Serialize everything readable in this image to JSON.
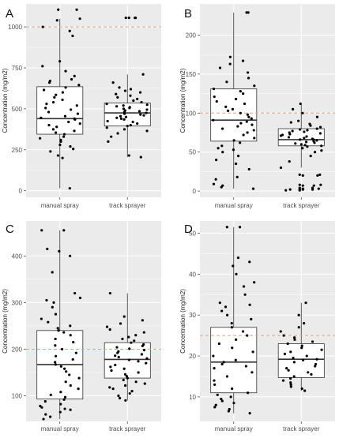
{
  "colors": {
    "panel_bg": "#ebebeb",
    "grid": "#ffffff",
    "box_fill": "#ffffff",
    "box_line": "#333333",
    "point": "#000000",
    "reference_line": "#e8a27a"
  },
  "chart_data": [
    {
      "type": "box",
      "panel_label": "A",
      "ylabel": "Concentration (mg/m2)",
      "categories": [
        "manual spray",
        "track sprayer"
      ],
      "ylim": [
        -40,
        1140
      ],
      "yticks": [
        0,
        250,
        500,
        750,
        1000
      ],
      "ytick_labels": [
        "0",
        "250",
        "500",
        "750",
        "1000"
      ],
      "reference_line": 1000,
      "grid": true,
      "boxes": [
        {
          "category": "manual spray",
          "whisker_low": 15,
          "q1": 345,
          "median": 440,
          "q3": 635,
          "whisker_high": 1050
        },
        {
          "category": "track sprayer",
          "whisker_low": 205,
          "q1": 395,
          "median": 475,
          "q3": 535,
          "whisker_high": 710
        }
      ],
      "outliers": [
        {
          "category": "manual spray",
          "values": [
            1105
          ]
        },
        {
          "category": "track sprayer",
          "values": [
            1055,
            1055
          ]
        }
      ],
      "points": [
        {
          "category": "manual spray",
          "values": [
            15,
            200,
            215,
            240,
            255,
            270,
            280,
            300,
            310,
            320,
            330,
            345,
            355,
            365,
            375,
            390,
            400,
            410,
            420,
            435,
            440,
            445,
            455,
            470,
            480,
            495,
            505,
            520,
            530,
            540,
            555,
            570,
            585,
            600,
            615,
            630,
            645,
            660,
            670,
            680,
            700,
            730,
            760,
            790,
            945,
            975,
            1000,
            1040,
            1050,
            1105
          ]
        },
        {
          "category": "track sprayer",
          "values": [
            205,
            215,
            300,
            330,
            350,
            365,
            375,
            385,
            395,
            400,
            410,
            420,
            425,
            435,
            440,
            445,
            450,
            455,
            460,
            465,
            470,
            475,
            480,
            485,
            490,
            495,
            500,
            505,
            510,
            515,
            520,
            525,
            530,
            540,
            550,
            560,
            570,
            580,
            590,
            600,
            610,
            620,
            630,
            660,
            710,
            1055,
            1055
          ]
        }
      ],
      "x_labels": [
        "manual spray",
        "track sprayer"
      ]
    },
    {
      "type": "box",
      "panel_label": "B",
      "ylabel": "Concentration (mg/m2)",
      "categories": [
        "manual spray",
        "track sprayer"
      ],
      "ylim": [
        -8,
        240
      ],
      "yticks": [
        0,
        50,
        100,
        150,
        200
      ],
      "ytick_labels": [
        "0",
        "50",
        "100",
        "150",
        "200"
      ],
      "reference_line": 100,
      "grid": true,
      "boxes": [
        {
          "category": "manual spray",
          "whisker_low": 3,
          "q1": 64,
          "median": 91,
          "q3": 131,
          "whisker_high": 229
        },
        {
          "category": "track sprayer",
          "whisker_low": 30,
          "q1": 58,
          "median": 66,
          "q3": 80,
          "whisker_high": 112
        }
      ],
      "outliers": [
        {
          "category": "track sprayer",
          "values": [
            21,
            20,
            8,
            7,
            4,
            3,
            2,
            2,
            1
          ]
        }
      ],
      "points": [
        {
          "category": "manual spray",
          "values": [
            3,
            5,
            7,
            9,
            15,
            18,
            28,
            35,
            40,
            45,
            50,
            53,
            55,
            58,
            62,
            65,
            68,
            72,
            75,
            78,
            80,
            83,
            85,
            87,
            89,
            91,
            93,
            95,
            98,
            100,
            103,
            105,
            108,
            112,
            115,
            118,
            121,
            125,
            128,
            131,
            135,
            140,
            145,
            152,
            158,
            163,
            167,
            172,
            229,
            229
          ]
        },
        {
          "category": "track sprayer",
          "values": [
            30,
            38,
            45,
            50,
            52,
            55,
            57,
            58,
            59,
            60,
            61,
            62,
            63,
            64,
            65,
            66,
            66,
            67,
            68,
            69,
            70,
            71,
            72,
            73,
            74,
            75,
            76,
            77,
            78,
            79,
            80,
            82,
            84,
            86,
            88,
            90,
            95,
            100,
            105,
            112,
            21,
            20,
            8,
            7,
            4,
            3,
            2,
            2,
            1
          ]
        }
      ],
      "x_labels": [
        "manual spray",
        "track sprayer"
      ]
    },
    {
      "type": "box",
      "panel_label": "C",
      "ylabel": "Concentration (mg/m2)",
      "categories": [
        "manual spray",
        "track sprayer"
      ],
      "ylim": [
        45,
        475
      ],
      "yticks": [
        100,
        200,
        300,
        400
      ],
      "ytick_labels": [
        "100",
        "200",
        "300",
        "400"
      ],
      "reference_line": 200,
      "grid": true,
      "boxes": [
        {
          "category": "manual spray",
          "whisker_low": 50,
          "q1": 93,
          "median": 167,
          "q3": 240,
          "whisker_high": 455
        },
        {
          "category": "track sprayer",
          "whisker_low": 90,
          "q1": 138,
          "median": 178,
          "q3": 214,
          "whisker_high": 320
        }
      ],
      "outliers": [],
      "points": [
        {
          "category": "manual spray",
          "values": [
            50,
            55,
            60,
            65,
            70,
            72,
            75,
            78,
            82,
            88,
            92,
            97,
            102,
            108,
            115,
            122,
            130,
            138,
            145,
            152,
            158,
            163,
            167,
            172,
            178,
            185,
            192,
            200,
            208,
            215,
            222,
            230,
            236,
            240,
            245,
            250,
            258,
            265,
            275,
            290,
            300,
            305,
            310,
            320,
            365,
            400,
            410,
            415,
            455,
            455
          ]
        },
        {
          "category": "track sprayer",
          "values": [
            90,
            95,
            100,
            105,
            110,
            115,
            118,
            122,
            126,
            130,
            134,
            138,
            142,
            146,
            150,
            154,
            158,
            162,
            166,
            170,
            174,
            177,
            180,
            183,
            186,
            189,
            192,
            195,
            198,
            201,
            204,
            207,
            210,
            214,
            218,
            222,
            226,
            230,
            236,
            242,
            248,
            255,
            262,
            270,
            320
          ]
        }
      ],
      "x_labels": [
        "manual spray",
        "track sprayer"
      ]
    },
    {
      "type": "box",
      "panel_label": "D",
      "ylabel": "Concentration (mg/m2)",
      "categories": [
        "manual spray",
        "track sprayer"
      ],
      "ylim": [
        4,
        53
      ],
      "yticks": [
        10,
        20,
        30,
        40,
        50
      ],
      "ytick_labels": [
        "10",
        "20",
        "30",
        "40",
        "50"
      ],
      "reference_line": 25,
      "grid": true,
      "boxes": [
        {
          "category": "manual spray",
          "whisker_low": 6,
          "q1": 11,
          "median": 18.5,
          "q3": 27,
          "whisker_high": 51.5
        },
        {
          "category": "track sprayer",
          "whisker_low": 11.5,
          "q1": 14.7,
          "median": 19.2,
          "q3": 23,
          "whisker_high": 33
        }
      ],
      "outliers": [],
      "points": [
        {
          "category": "manual spray",
          "values": [
            6,
            6.5,
            7,
            7.5,
            8,
            8.5,
            9,
            9.5,
            10,
            10.5,
            11,
            12,
            13,
            14,
            15,
            16,
            17,
            17.5,
            18,
            18.5,
            19,
            20,
            21,
            22,
            23,
            24,
            25,
            26,
            27,
            28,
            29,
            30,
            31,
            32,
            32.5,
            33,
            35,
            37,
            38,
            40,
            42,
            43,
            44,
            51.5,
            51.5
          ]
        },
        {
          "category": "track sprayer",
          "values": [
            11.5,
            12,
            12.5,
            13,
            13.5,
            14,
            14.5,
            15,
            15.5,
            16,
            16.5,
            17,
            17.5,
            18,
            18.5,
            19,
            19.2,
            19.5,
            20,
            20.5,
            21,
            21.5,
            22,
            22.5,
            23,
            23.5,
            24,
            24.5,
            25,
            26,
            27,
            28,
            30,
            33
          ]
        }
      ],
      "x_labels": [
        "manual spray",
        "track sprayer"
      ]
    }
  ]
}
